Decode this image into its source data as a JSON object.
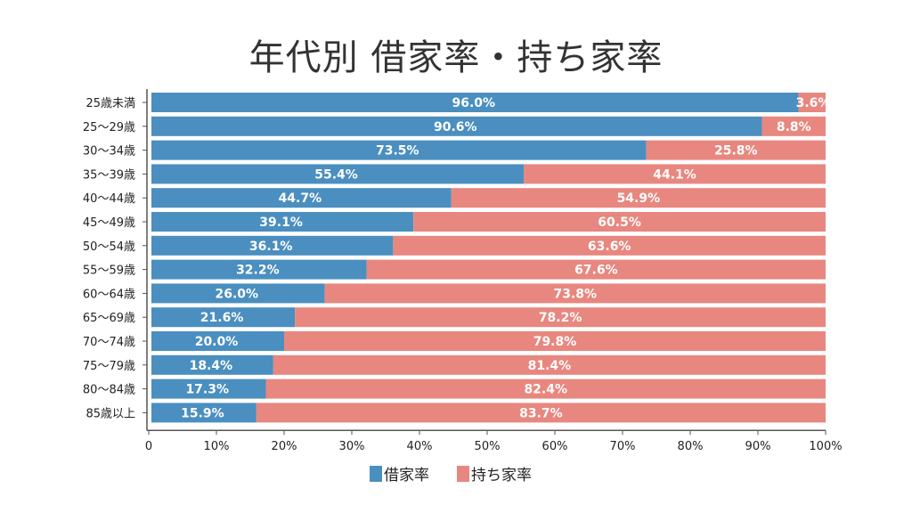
{
  "chart_data": {
    "type": "bar",
    "orientation": "horizontal",
    "stacked": true,
    "title": "年代別 借家率・持ち家率",
    "categories": [
      "25歳未満",
      "25～29歳",
      "30～34歳",
      "35～39歳",
      "40～44歳",
      "45～49歳",
      "50～54歳",
      "55～59歳",
      "60～64歳",
      "65～69歳",
      "70～74歳",
      "75～79歳",
      "80～84歳",
      "85歳以上"
    ],
    "series": [
      {
        "name": "借家率",
        "color": "#4a8fc0",
        "values": [
          96.0,
          90.6,
          73.5,
          55.4,
          44.7,
          39.1,
          36.1,
          32.2,
          26.0,
          21.6,
          20.0,
          18.4,
          17.3,
          15.9
        ]
      },
      {
        "name": "持ち家率",
        "color": "#e8877f",
        "values": [
          3.6,
          8.8,
          25.8,
          44.1,
          54.9,
          60.5,
          63.6,
          67.6,
          73.8,
          78.2,
          79.8,
          81.4,
          82.4,
          83.7
        ]
      }
    ],
    "xlim": [
      0,
      100
    ],
    "xticks": [
      "0",
      "10%",
      "20%",
      "30%",
      "40%",
      "50%",
      "60%",
      "70%",
      "80%",
      "90%",
      "100%"
    ],
    "legend": "bottom",
    "grid": false
  }
}
